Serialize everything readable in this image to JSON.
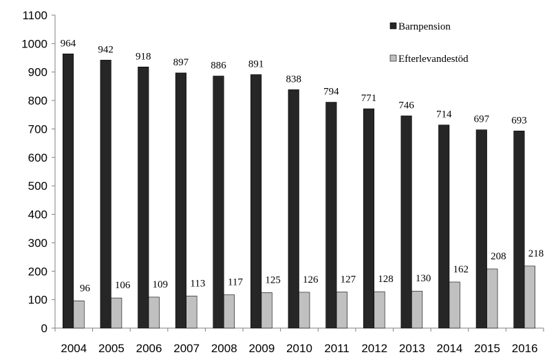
{
  "chart_data": {
    "type": "bar",
    "categories": [
      "2004",
      "2005",
      "2006",
      "2007",
      "2008",
      "2009",
      "2010",
      "2011",
      "2012",
      "2013",
      "2014",
      "2015",
      "2016"
    ],
    "series": [
      {
        "name": "Barnpension",
        "color": "#262626",
        "values": [
          964,
          942,
          918,
          897,
          886,
          891,
          838,
          794,
          771,
          746,
          714,
          697,
          693
        ]
      },
      {
        "name": "Efterlevandestöd",
        "color": "#c0c0c0",
        "values": [
          96,
          106,
          109,
          113,
          117,
          125,
          126,
          127,
          128,
          130,
          162,
          208,
          218
        ]
      }
    ],
    "ylim": [
      0,
      1100
    ],
    "yticks": [
      0,
      100,
      200,
      300,
      400,
      500,
      600,
      700,
      800,
      900,
      1000,
      1100
    ],
    "grid": false,
    "legend": "top-right"
  }
}
